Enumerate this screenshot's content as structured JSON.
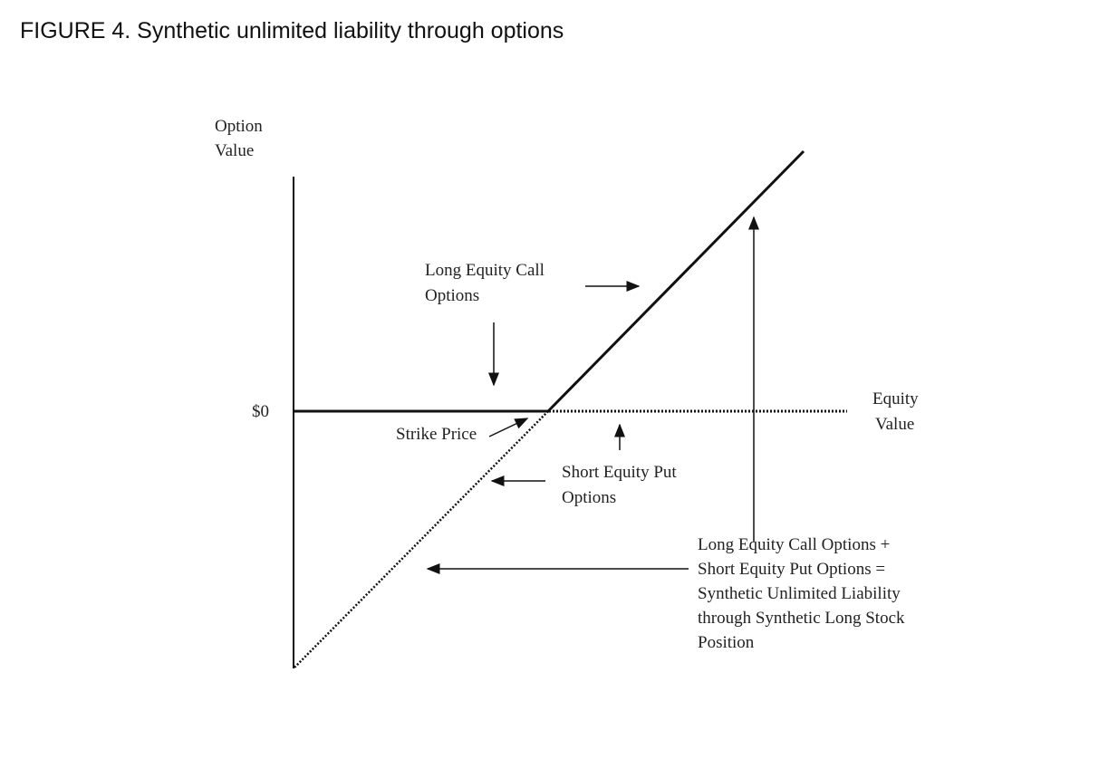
{
  "figure": {
    "title": "FIGURE 4. Synthetic unlimited liability through options",
    "y_axis_label": [
      "Option",
      "Value"
    ],
    "x_axis_label": [
      "Equity",
      "Value"
    ],
    "zero_label": "$0",
    "labels": {
      "long_call": [
        "Long Equity Call",
        "Options"
      ],
      "strike": "Strike Price",
      "short_put": [
        "Short Equity Put",
        "Options"
      ],
      "combined": [
        "Long Equity Call Options +",
        "Short Equity Put Options  =",
        "Synthetic Unlimited Liability",
        "through Synthetic Long Stock",
        "Position"
      ]
    },
    "line_color": "#111111"
  }
}
